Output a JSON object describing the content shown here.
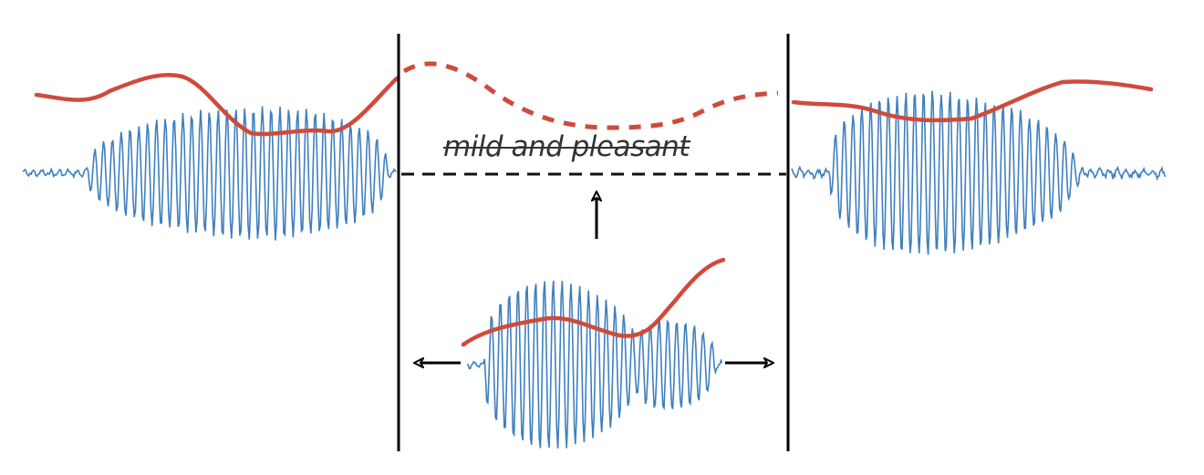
{
  "caption": "mild and pleasant",
  "colors": {
    "waveform": "#3f7fbf",
    "pitch_contour": "#d04a3c",
    "divider": "#000000",
    "caption": "#333333"
  },
  "icons": {
    "up": "arrow-up-icon",
    "left": "arrow-left-icon",
    "right": "arrow-right-icon"
  }
}
